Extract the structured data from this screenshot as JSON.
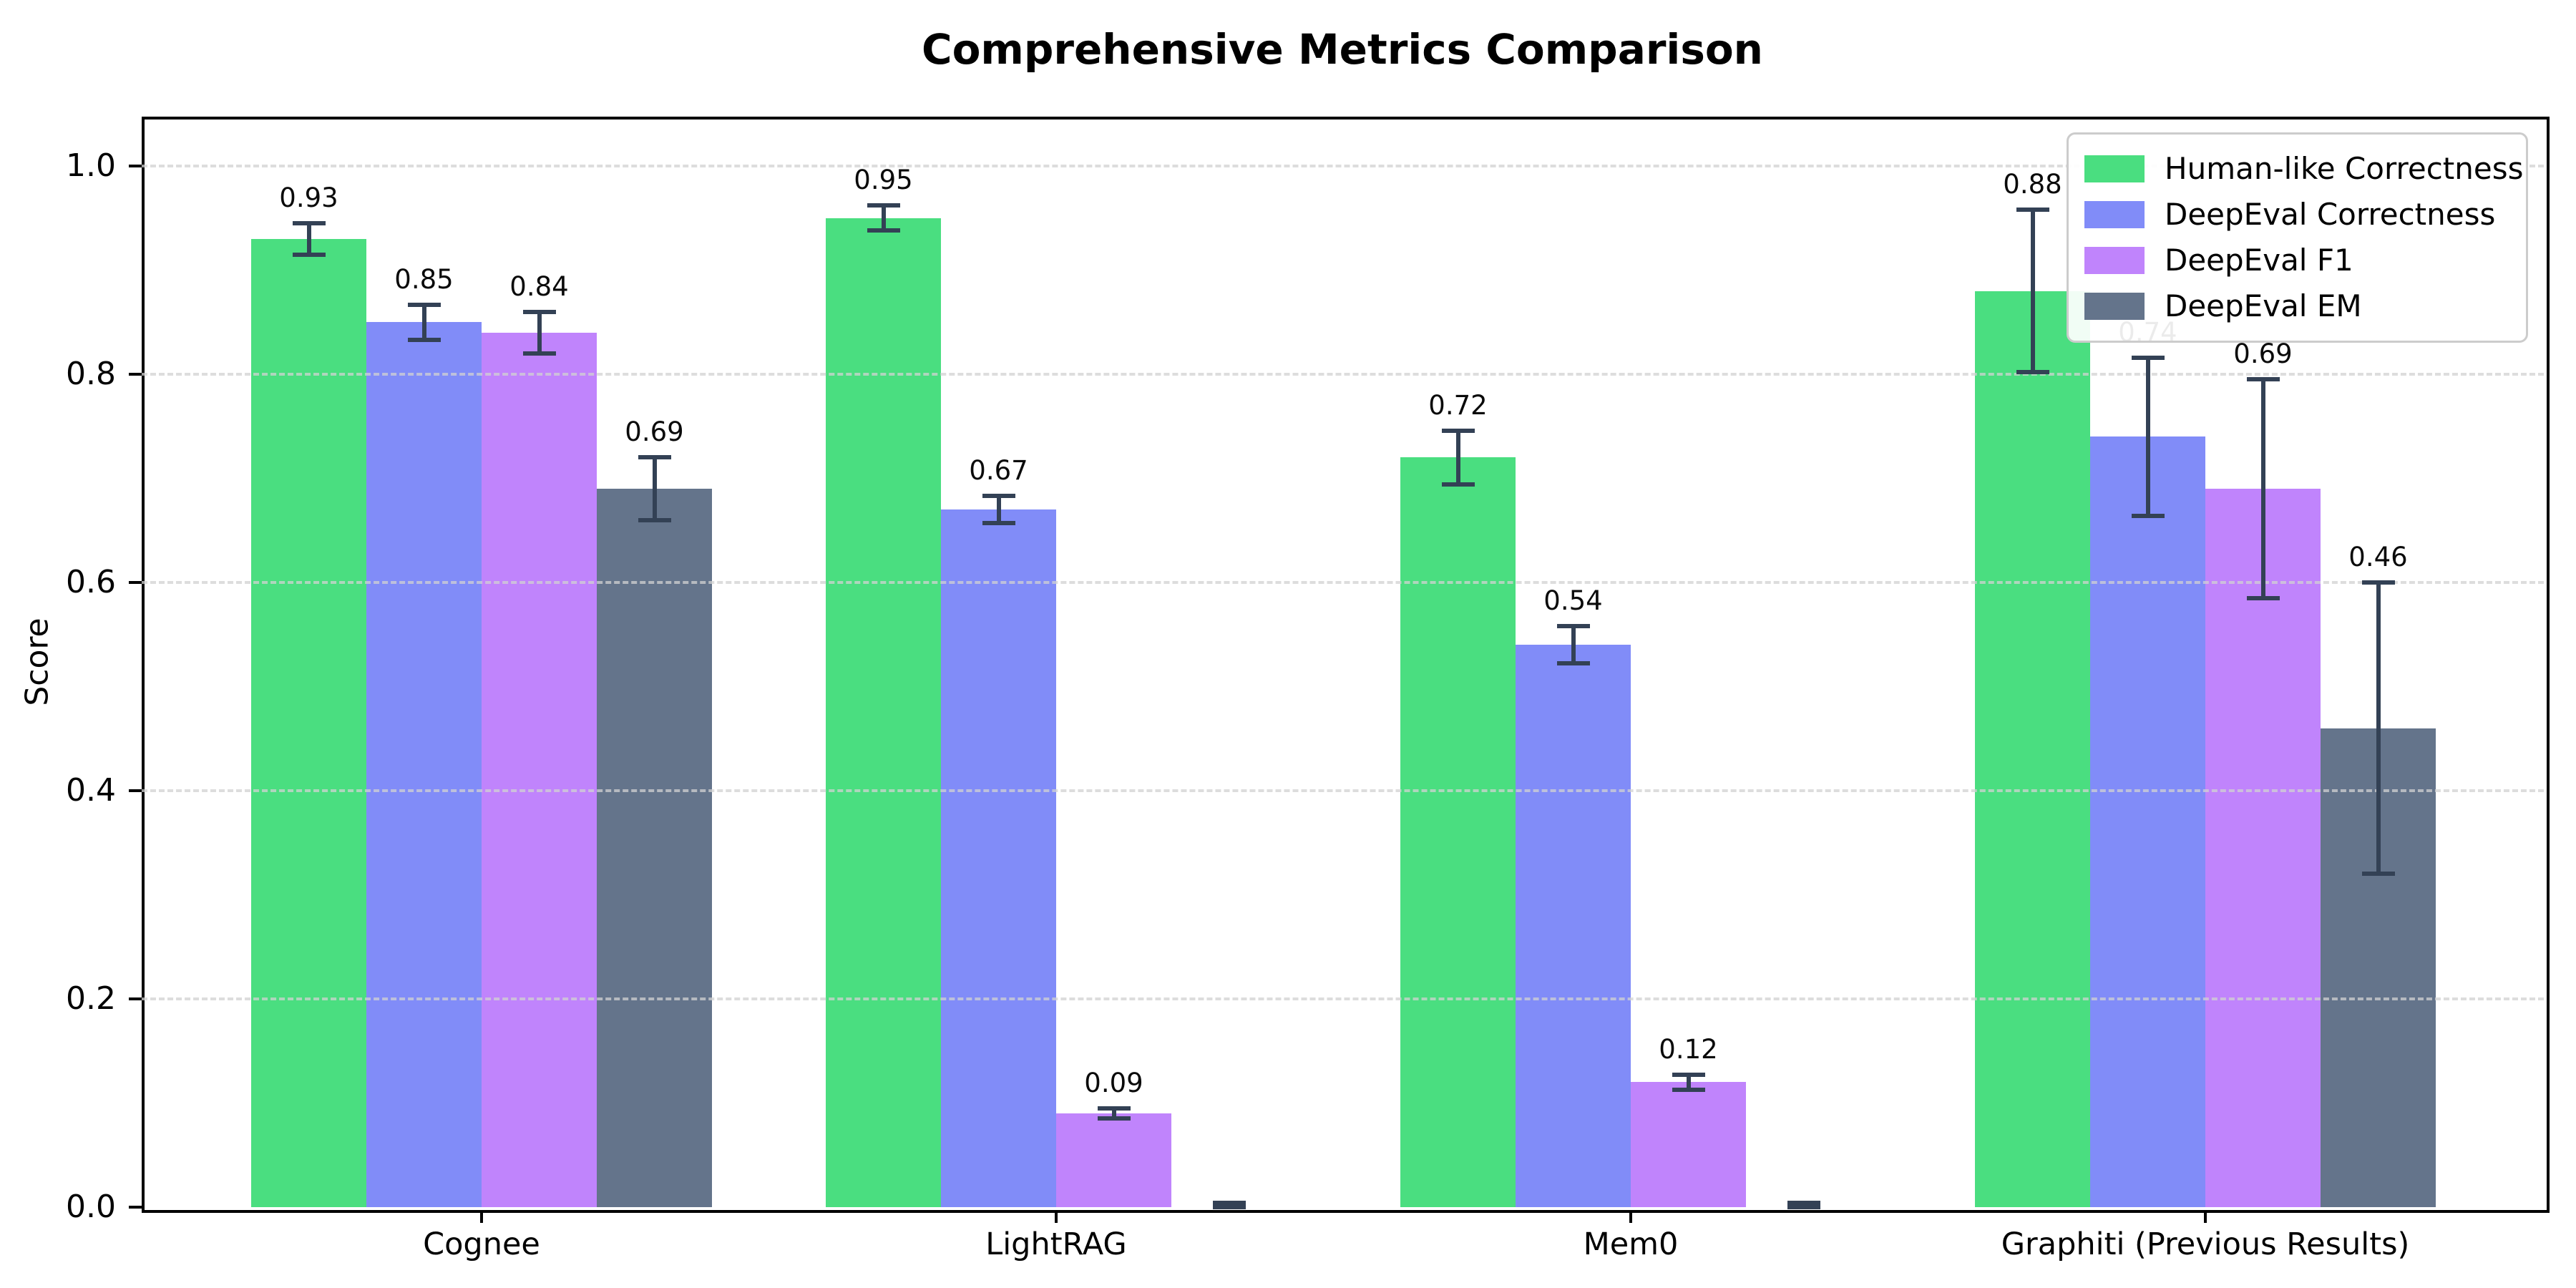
{
  "title": "Comprehensive Metrics Comparison",
  "colors": {
    "human_like": "#4ade80",
    "deepeval_correctness": "#818cf8",
    "deepeval_f1": "#c084fc",
    "deepeval_em": "#64748b",
    "error_bar": "#334155",
    "grid": "#d2d2d2",
    "text": "#000000"
  },
  "chart_data": {
    "type": "bar",
    "title": "Comprehensive Metrics Comparison",
    "xlabel": "",
    "ylabel": "Score",
    "categories": [
      "Cognee",
      "LightRAG",
      "Mem0",
      "Graphiti (Previous Results)"
    ],
    "series": [
      {
        "name": "Human-like Correctness",
        "color": "#4ade80",
        "values": [
          0.93,
          0.95,
          0.72,
          0.88
        ],
        "errors": [
          0.015,
          0.012,
          0.026,
          0.078
        ],
        "labels": [
          "0.93",
          "0.95",
          "0.72",
          "0.88"
        ]
      },
      {
        "name": "DeepEval Correctness",
        "color": "#818cf8",
        "values": [
          0.85,
          0.67,
          0.54,
          0.74
        ],
        "errors": [
          0.017,
          0.013,
          0.018,
          0.076
        ],
        "labels": [
          "0.85",
          "0.67",
          "0.54",
          "0.74"
        ]
      },
      {
        "name": "DeepEval F1",
        "color": "#c084fc",
        "values": [
          0.84,
          0.09,
          0.12,
          0.69
        ],
        "errors": [
          0.02,
          0.005,
          0.007,
          0.105
        ],
        "labels": [
          "0.84",
          "0.09",
          "0.12",
          "0.69"
        ]
      },
      {
        "name": "DeepEval EM",
        "color": "#64748b",
        "values": [
          0.69,
          0.0,
          0.0,
          0.46
        ],
        "errors": [
          0.03,
          0.004,
          0.004,
          0.14
        ],
        "labels": [
          "0.69",
          "",
          "",
          "0.46"
        ]
      }
    ],
    "yticks": [
      "1.0",
      "0.8",
      "0.6",
      "0.4",
      "0.2",
      "0.0"
    ],
    "ylim": [
      0.0,
      1.047
    ],
    "grid": "horizontal dashed every 0.2",
    "legend_position": "upper right"
  }
}
